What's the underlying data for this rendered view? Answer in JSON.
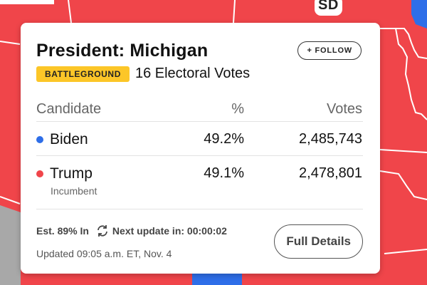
{
  "map": {
    "state_label": "SD",
    "colors": {
      "republican": "#f0454a",
      "democrat": "#2e6ee8",
      "border": "#ffffff",
      "undecided": "#a8a8a8"
    }
  },
  "card": {
    "title": "President: Michigan",
    "follow_label": "+ FOLLOW",
    "badge": "BATTLEGROUND",
    "electoral_votes": "16 Electoral Votes",
    "headers": {
      "candidate": "Candidate",
      "percent": "%",
      "votes": "Votes"
    },
    "candidates": [
      {
        "name": "Biden",
        "percent": "49.2%",
        "votes": "2,485,743",
        "color": "#2e6ee8",
        "note": ""
      },
      {
        "name": "Trump",
        "percent": "49.1%",
        "votes": "2,478,801",
        "color": "#f0454a",
        "note": "Incumbent"
      }
    ],
    "estimate": "Est. 89% In",
    "next_update": "Next update in: 00:00:02",
    "updated": "Updated 09:05 a.m. ET, Nov. 4",
    "details_label": "Full Details",
    "refresh_icon": "refresh-icon"
  }
}
